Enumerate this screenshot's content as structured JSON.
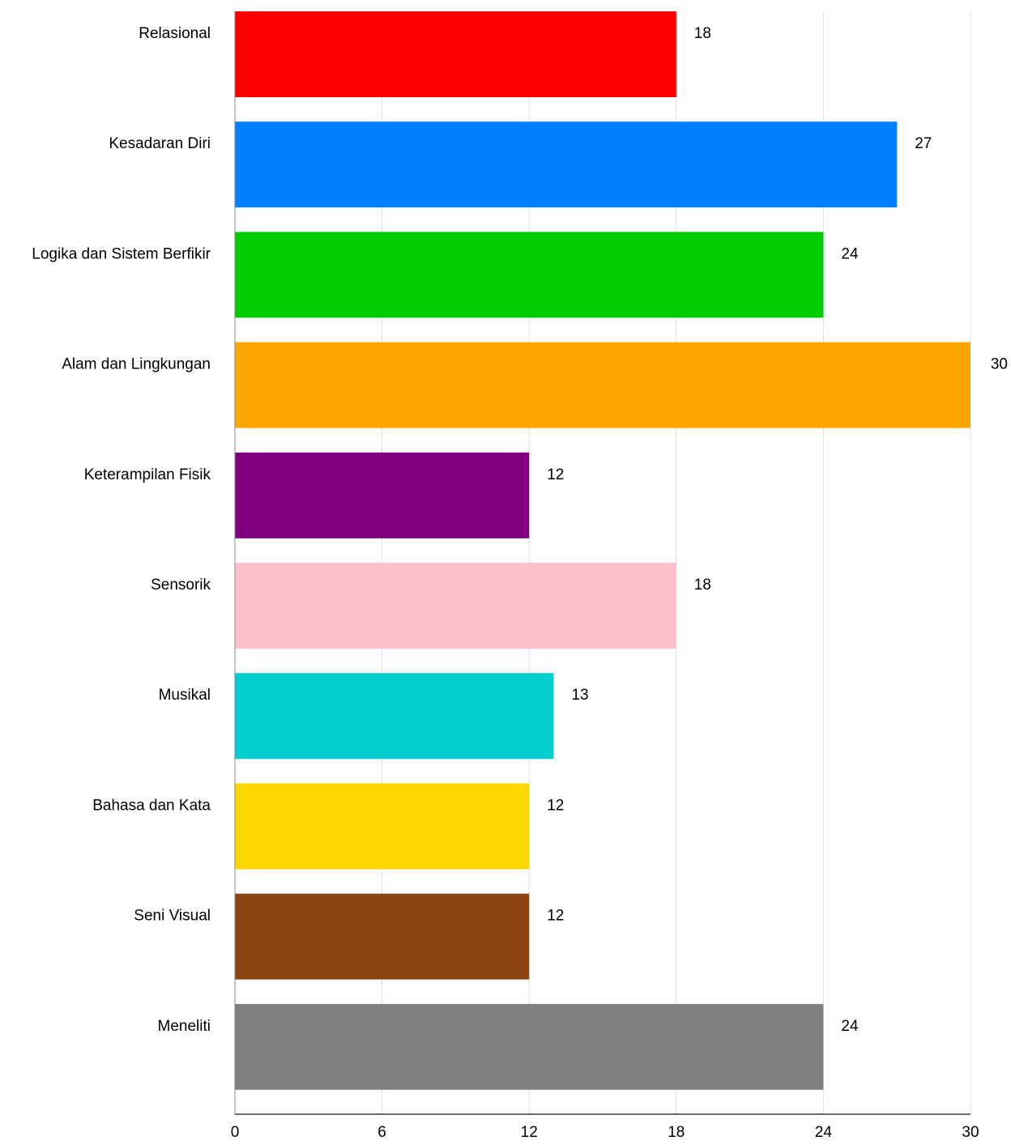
{
  "chart_data": {
    "type": "bar",
    "orientation": "horizontal",
    "categories": [
      "Relasional",
      "Kesadaran Diri",
      "Logika dan Sistem Berfikir",
      "Alam dan Lingkungan",
      "Keterampilan Fisik",
      "Sensorik",
      "Musikal",
      "Bahasa dan Kata",
      "Seni Visual",
      "Meneliti"
    ],
    "values": [
      18,
      27,
      24,
      30,
      12,
      18,
      13,
      12,
      12,
      24
    ],
    "colors": [
      "#ff0000",
      "#0080ff",
      "#00cc00",
      "#ffa500",
      "#800080",
      "#ffc0cb",
      "#00ced1",
      "#ffd700",
      "#8b4513",
      "#808080"
    ],
    "title": "",
    "xlabel": "",
    "ylabel": "",
    "xlim": [
      0,
      30
    ],
    "x_ticks": [
      0,
      6,
      12,
      18,
      24,
      30
    ],
    "grid": "vertical",
    "grid_color": "#dddddd",
    "legend": "none",
    "data_labels": true
  }
}
